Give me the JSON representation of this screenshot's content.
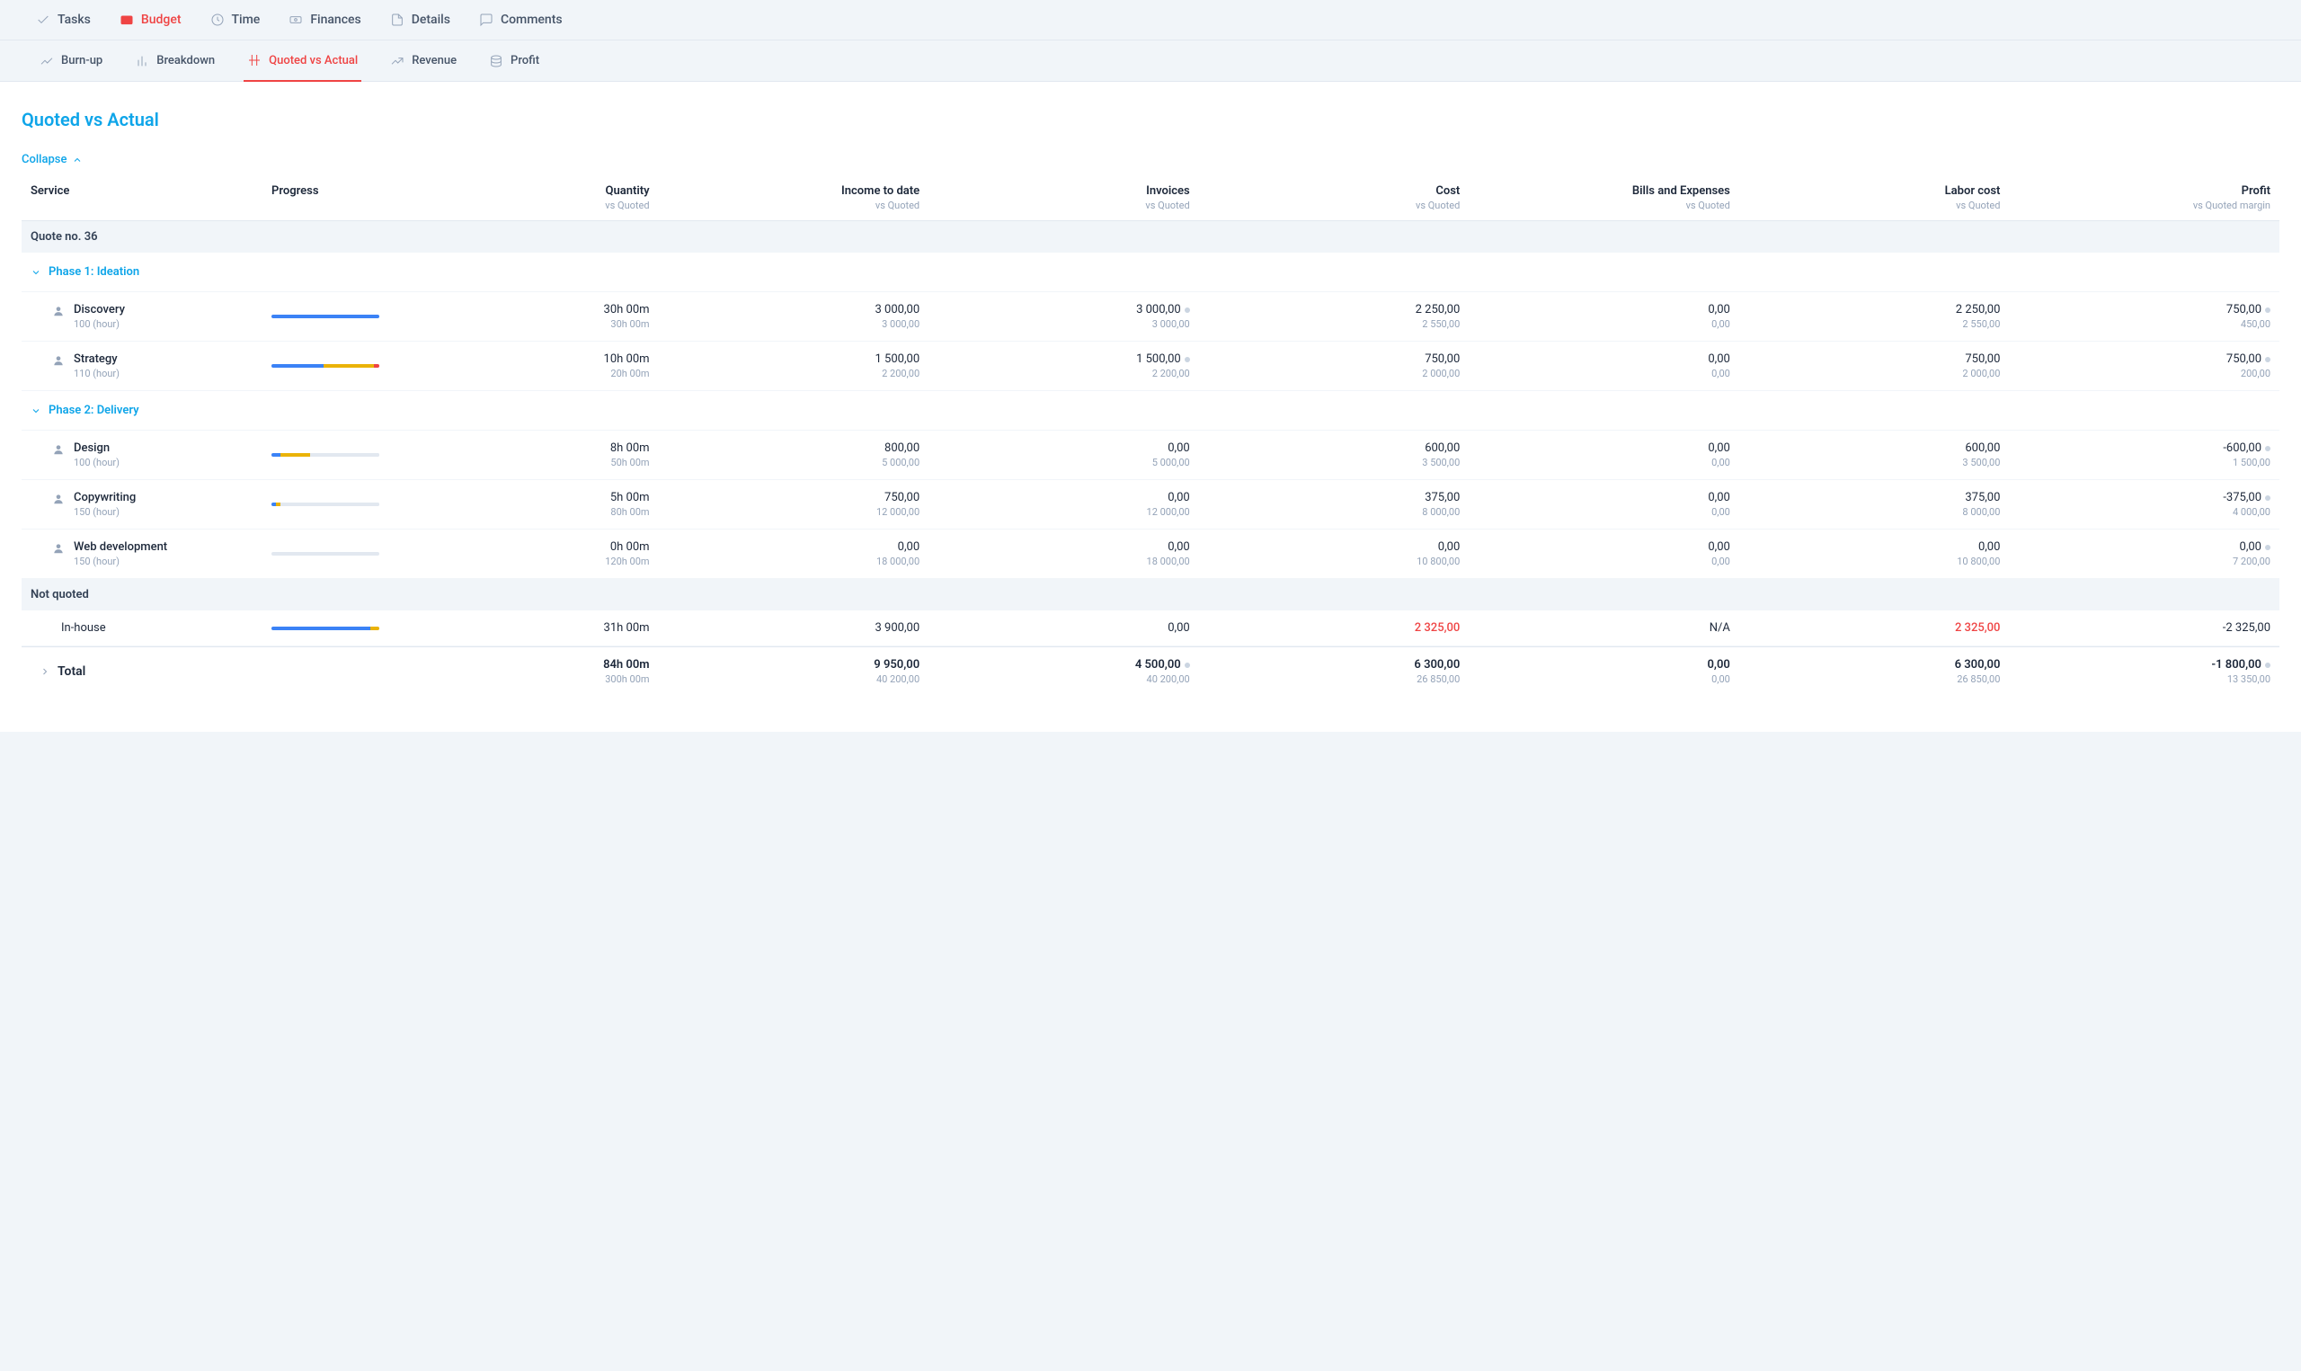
{
  "mainTabs": [
    {
      "label": "Tasks",
      "active": false
    },
    {
      "label": "Budget",
      "active": true
    },
    {
      "label": "Time",
      "active": false
    },
    {
      "label": "Finances",
      "active": false
    },
    {
      "label": "Details",
      "active": false
    },
    {
      "label": "Comments",
      "active": false
    }
  ],
  "subTabs": [
    {
      "label": "Burn-up",
      "active": false
    },
    {
      "label": "Breakdown",
      "active": false
    },
    {
      "label": "Quoted vs Actual",
      "active": true
    },
    {
      "label": "Revenue",
      "active": false
    },
    {
      "label": "Profit",
      "active": false
    }
  ],
  "pageTitle": "Quoted vs Actual",
  "collapseLabel": "Collapse",
  "columns": [
    {
      "label": "Service",
      "sub": ""
    },
    {
      "label": "Progress",
      "sub": ""
    },
    {
      "label": "Quantity",
      "sub": "vs Quoted"
    },
    {
      "label": "Income to date",
      "sub": "vs Quoted"
    },
    {
      "label": "Invoices",
      "sub": "vs Quoted"
    },
    {
      "label": "Cost",
      "sub": "vs Quoted"
    },
    {
      "label": "Bills and Expenses",
      "sub": "vs Quoted"
    },
    {
      "label": "Labor cost",
      "sub": "vs Quoted"
    },
    {
      "label": "Profit",
      "sub": "vs Quoted margin"
    }
  ],
  "quoteHeader": "Quote no. 36",
  "phase1": {
    "label": "Phase 1: Ideation"
  },
  "phase2": {
    "label": "Phase 2: Delivery"
  },
  "notQuotedHeader": "Not quoted",
  "colors": {
    "blue": "#3b82f6",
    "yellow": "#eab308",
    "red": "#ef4444",
    "track": "#e2e8f0"
  },
  "rows": {
    "discovery": {
      "name": "Discovery",
      "rate": "100 (hour)",
      "progress": [
        {
          "c": "#3b82f6",
          "w": 100
        }
      ],
      "qty": "30h 00m",
      "qtySub": "30h 00m",
      "income": "3 000,00",
      "incomeSub": "3 000,00",
      "inv": "3 000,00",
      "invSub": "3 000,00",
      "invDot": true,
      "cost": "2 250,00",
      "costSub": "2 550,00",
      "bills": "0,00",
      "billsSub": "0,00",
      "labor": "2 250,00",
      "laborSub": "2 550,00",
      "profit": "750,00",
      "profitSub": "450,00",
      "profitDot": true
    },
    "strategy": {
      "name": "Strategy",
      "rate": "110 (hour)",
      "progress": [
        {
          "c": "#3b82f6",
          "w": 48
        },
        {
          "c": "#eab308",
          "w": 47
        },
        {
          "c": "#ef4444",
          "w": 5
        }
      ],
      "qty": "10h 00m",
      "qtySub": "20h 00m",
      "income": "1 500,00",
      "incomeSub": "2 200,00",
      "inv": "1 500,00",
      "invSub": "2 200,00",
      "invDot": true,
      "cost": "750,00",
      "costSub": "2 000,00",
      "bills": "0,00",
      "billsSub": "0,00",
      "labor": "750,00",
      "laborSub": "2 000,00",
      "profit": "750,00",
      "profitSub": "200,00",
      "profitDot": true
    },
    "design": {
      "name": "Design",
      "rate": "100 (hour)",
      "progress": [
        {
          "c": "#3b82f6",
          "w": 8
        },
        {
          "c": "#eab308",
          "w": 28
        },
        {
          "c": "#e2e8f0",
          "w": 64
        }
      ],
      "qty": "8h 00m",
      "qtySub": "50h 00m",
      "income": "800,00",
      "incomeSub": "5 000,00",
      "inv": "0,00",
      "invSub": "5 000,00",
      "cost": "600,00",
      "costSub": "3 500,00",
      "bills": "0,00",
      "billsSub": "0,00",
      "labor": "600,00",
      "laborSub": "3 500,00",
      "profit": "-600,00",
      "profitSub": "1 500,00",
      "profitDot": true
    },
    "copywriting": {
      "name": "Copywriting",
      "rate": "150 (hour)",
      "progress": [
        {
          "c": "#3b82f6",
          "w": 4
        },
        {
          "c": "#eab308",
          "w": 4
        },
        {
          "c": "#e2e8f0",
          "w": 92
        }
      ],
      "qty": "5h 00m",
      "qtySub": "80h 00m",
      "income": "750,00",
      "incomeSub": "12 000,00",
      "inv": "0,00",
      "invSub": "12 000,00",
      "cost": "375,00",
      "costSub": "8 000,00",
      "bills": "0,00",
      "billsSub": "0,00",
      "labor": "375,00",
      "laborSub": "8 000,00",
      "profit": "-375,00",
      "profitSub": "4 000,00",
      "profitDot": true
    },
    "webdev": {
      "name": "Web development",
      "rate": "150 (hour)",
      "progress": [
        {
          "c": "#e2e8f0",
          "w": 100
        }
      ],
      "qty": "0h 00m",
      "qtySub": "120h 00m",
      "income": "0,00",
      "incomeSub": "18 000,00",
      "inv": "0,00",
      "invSub": "18 000,00",
      "cost": "0,00",
      "costSub": "10 800,00",
      "bills": "0,00",
      "billsSub": "0,00",
      "labor": "0,00",
      "laborSub": "10 800,00",
      "profit": "0,00",
      "profitSub": "7 200,00",
      "profitDot": true
    },
    "inhouse": {
      "name": "In-house",
      "progress": [
        {
          "c": "#3b82f6",
          "w": 92
        },
        {
          "c": "#eab308",
          "w": 8
        }
      ],
      "qty": "31h 00m",
      "income": "3 900,00",
      "inv": "0,00",
      "cost": "2 325,00",
      "costHighlight": true,
      "bills": "N/A",
      "labor": "2 325,00",
      "laborHighlight": true,
      "profit": "-2 325,00"
    },
    "total": {
      "name": "Total",
      "qty": "84h 00m",
      "qtySub": "300h 00m",
      "income": "9 950,00",
      "incomeSub": "40 200,00",
      "inv": "4 500,00",
      "invSub": "40 200,00",
      "invDot": true,
      "cost": "6 300,00",
      "costSub": "26 850,00",
      "bills": "0,00",
      "billsSub": "0,00",
      "labor": "6 300,00",
      "laborSub": "26 850,00",
      "profit": "-1 800,00",
      "profitSub": "13 350,00",
      "profitDot": true
    }
  }
}
